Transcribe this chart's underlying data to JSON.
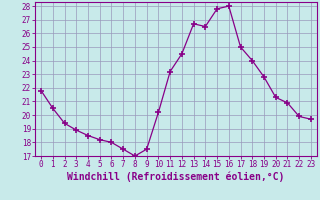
{
  "x": [
    0,
    1,
    2,
    3,
    4,
    5,
    6,
    7,
    8,
    9,
    10,
    11,
    12,
    13,
    14,
    15,
    16,
    17,
    18,
    19,
    20,
    21,
    22,
    23
  ],
  "y": [
    21.8,
    20.5,
    19.4,
    18.9,
    18.5,
    18.2,
    18.0,
    17.5,
    17.0,
    17.5,
    20.2,
    23.2,
    24.5,
    26.7,
    26.5,
    27.8,
    28.0,
    25.0,
    24.0,
    22.8,
    21.3,
    20.9,
    19.9,
    19.7
  ],
  "line_color": "#880088",
  "marker": "+",
  "marker_size": 4,
  "marker_lw": 1.2,
  "bg_color": "#c8eaea",
  "grid_color": "#9999bb",
  "xlabel": "Windchill (Refroidissement éolien,°C)",
  "xlabel_fontsize": 7,
  "ylim": [
    17,
    28
  ],
  "yticks": [
    17,
    18,
    19,
    20,
    21,
    22,
    23,
    24,
    25,
    26,
    27,
    28
  ],
  "xticks": [
    0,
    1,
    2,
    3,
    4,
    5,
    6,
    7,
    8,
    9,
    10,
    11,
    12,
    13,
    14,
    15,
    16,
    17,
    18,
    19,
    20,
    21,
    22,
    23
  ],
  "tick_fontsize": 5.5,
  "tick_color": "#880088",
  "label_color": "#880088",
  "spine_color": "#880088",
  "line_width": 0.9
}
